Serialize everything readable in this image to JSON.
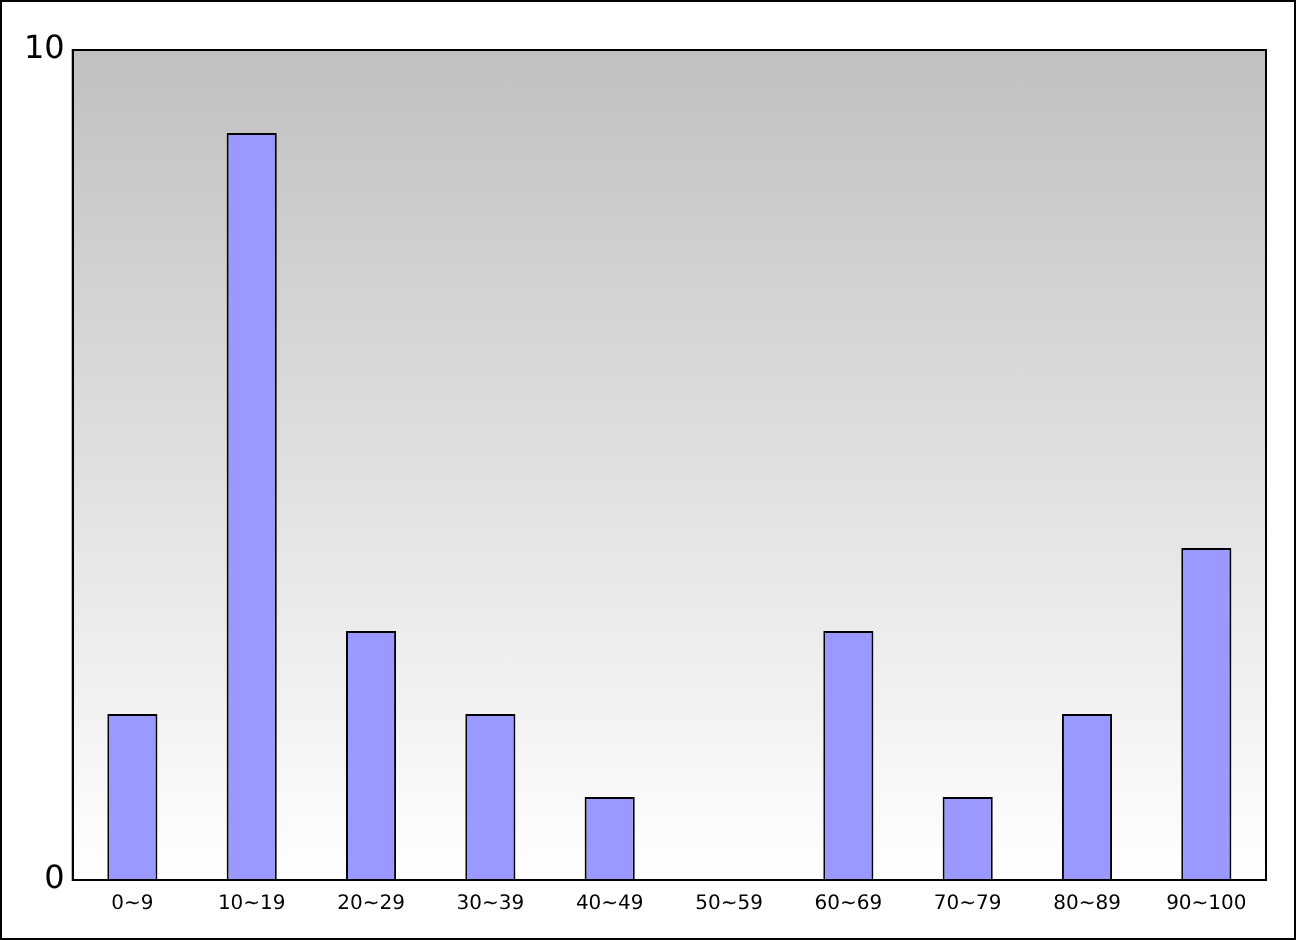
{
  "chart_data": {
    "type": "bar",
    "categories": [
      "0~9",
      "10~19",
      "20~29",
      "30~39",
      "40~49",
      "50~59",
      "60~69",
      "70~79",
      "80~89",
      "90~100"
    ],
    "values": [
      2,
      9,
      3,
      2,
      1,
      0,
      3,
      1,
      2,
      4
    ],
    "color": "#9999ff",
    "ylim": [
      0,
      10
    ],
    "yticks": [
      0,
      10
    ],
    "grid": false,
    "legend": false
  }
}
